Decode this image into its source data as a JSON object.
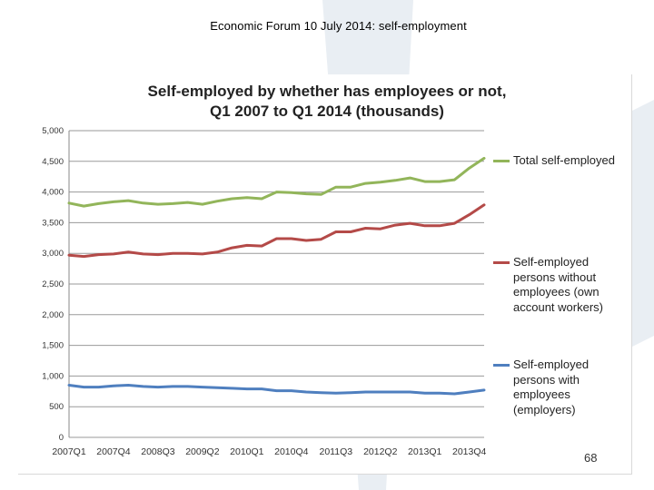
{
  "header": {
    "title": "Economic Forum 10 July 2014: self-employment"
  },
  "footer": {
    "page_number": "68"
  },
  "colors": {
    "total": "#92b55a",
    "without_employees": "#b44a48",
    "with_employees": "#4f7fbf",
    "gridline": "#9a9a9a",
    "watermark": "#e9eef3"
  },
  "chart_data": {
    "type": "line",
    "title_lines": [
      "Self-employed by whether has employees or not,",
      "Q1 2007 to Q1 2014 (thousands)"
    ],
    "xlabel": "",
    "ylabel": "",
    "ylim": [
      0,
      5000
    ],
    "y_ticks": [
      0,
      500,
      1000,
      1500,
      2000,
      2500,
      3000,
      3500,
      4000,
      4500,
      5000
    ],
    "y_tick_labels": [
      "0",
      "500",
      "1,000",
      "1,500",
      "2,000",
      "2,500",
      "3,000",
      "3,500",
      "4,000",
      "4,500",
      "5,000"
    ],
    "x_tick_labels": [
      "2007Q1",
      "2007Q4",
      "2008Q3",
      "2009Q2",
      "2010Q1",
      "2010Q4",
      "2011Q3",
      "2012Q2",
      "2013Q1",
      "2013Q4"
    ],
    "grid": "horizontal",
    "legend_position": "right",
    "categories": [
      "2007Q1",
      "2007Q2",
      "2007Q3",
      "2007Q4",
      "2008Q1",
      "2008Q2",
      "2008Q3",
      "2008Q4",
      "2009Q1",
      "2009Q2",
      "2009Q3",
      "2009Q4",
      "2010Q1",
      "2010Q2",
      "2010Q3",
      "2010Q4",
      "2011Q1",
      "2011Q2",
      "2011Q3",
      "2011Q4",
      "2012Q1",
      "2012Q2",
      "2012Q3",
      "2012Q4",
      "2013Q1",
      "2013Q2",
      "2013Q3",
      "2013Q4",
      "2014Q1"
    ],
    "series": [
      {
        "name": "Total self-employed",
        "color_key": "total",
        "values": [
          3820,
          3770,
          3810,
          3840,
          3860,
          3820,
          3800,
          3810,
          3830,
          3800,
          3850,
          3890,
          3910,
          3890,
          4000,
          3990,
          3970,
          3960,
          4080,
          4080,
          4140,
          4160,
          4190,
          4230,
          4170,
          4170,
          4200,
          4390,
          4550
        ]
      },
      {
        "name": "Self-employed persons without employees (own account workers)",
        "color_key": "without_employees",
        "values": [
          2970,
          2950,
          2980,
          2990,
          3020,
          2990,
          2980,
          3000,
          3000,
          2990,
          3020,
          3090,
          3130,
          3120,
          3240,
          3240,
          3210,
          3230,
          3350,
          3350,
          3410,
          3400,
          3460,
          3490,
          3450,
          3450,
          3490,
          3630,
          3790
        ]
      },
      {
        "name": "Self-employed persons with employees (employers)",
        "color_key": "with_employees",
        "values": [
          850,
          820,
          820,
          840,
          850,
          830,
          820,
          830,
          830,
          820,
          810,
          800,
          790,
          790,
          760,
          760,
          740,
          730,
          720,
          730,
          740,
          740,
          740,
          740,
          720,
          720,
          710,
          740,
          770
        ]
      }
    ]
  }
}
